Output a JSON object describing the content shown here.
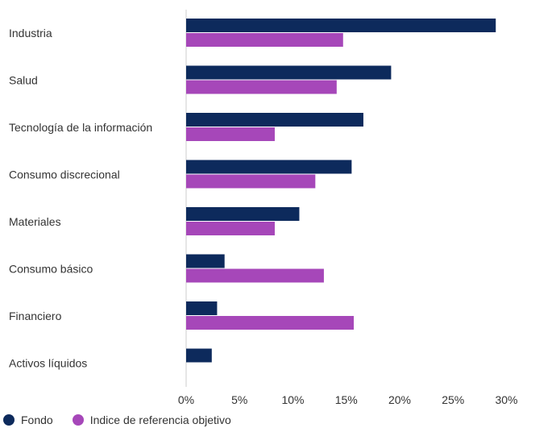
{
  "chart_data": {
    "type": "bar",
    "orientation": "horizontal",
    "categories": [
      "Industria",
      "Salud",
      "Tecnología de la información",
      "Consumo discrecional",
      "Materiales",
      "Consumo básico",
      "Financiero",
      "Activos líquidos"
    ],
    "series": [
      {
        "name": "Fondo",
        "color": "#0d2a5c",
        "values": [
          29.0,
          19.2,
          16.6,
          15.5,
          10.6,
          3.6,
          2.9,
          2.4
        ]
      },
      {
        "name": "Indice de referencia objetivo",
        "color": "#a647b9",
        "values": [
          14.7,
          14.1,
          8.3,
          12.1,
          8.3,
          12.9,
          15.7,
          null
        ]
      }
    ],
    "xlim": [
      0,
      35
    ],
    "xticks": [
      "0%",
      "5%",
      "10%",
      "15%",
      "20%",
      "25%",
      "30%"
    ],
    "xtick_values": [
      0,
      5,
      10,
      15,
      20,
      25,
      30
    ],
    "grid": false,
    "legend_position": "bottom-left"
  }
}
